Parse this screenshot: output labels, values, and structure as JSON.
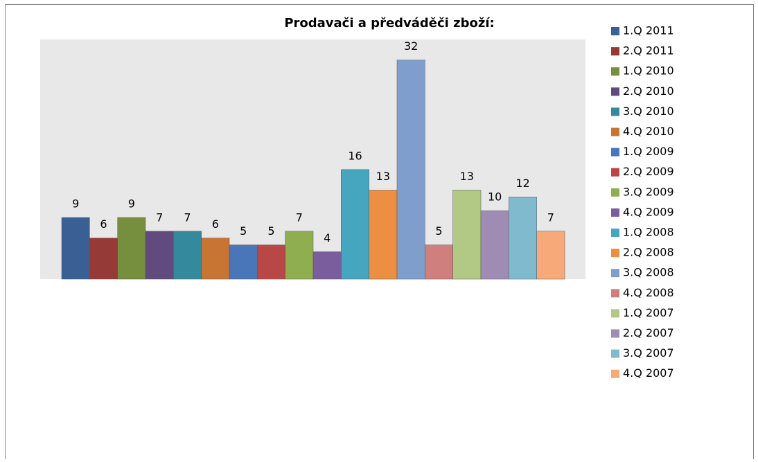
{
  "chart_data": {
    "type": "bar",
    "title": "Prodavači a předváděči zboží:",
    "ylim": [
      0,
      35
    ],
    "series": [
      {
        "name": "1.Q 2011",
        "color": "#3a5f94",
        "values": [
          9
        ]
      },
      {
        "name": "2.Q 2011",
        "color": "#963a38",
        "values": [
          6
        ]
      },
      {
        "name": "1.Q 2010",
        "color": "#768f3e",
        "values": [
          9
        ]
      },
      {
        "name": "2.Q 2010",
        "color": "#614a7e",
        "values": [
          7
        ]
      },
      {
        "name": "3.Q 2010",
        "color": "#35899c",
        "values": [
          7
        ]
      },
      {
        "name": "4.Q 2010",
        "color": "#c87533",
        "values": [
          6
        ]
      },
      {
        "name": "1.Q 2009",
        "color": "#4876b8",
        "values": [
          5
        ]
      },
      {
        "name": "2.Q 2009",
        "color": "#b94745",
        "values": [
          5
        ]
      },
      {
        "name": "3.Q 2009",
        "color": "#8fae50",
        "values": [
          7
        ]
      },
      {
        "name": "4.Q 2009",
        "color": "#7a5d9c",
        "values": [
          4
        ]
      },
      {
        "name": "1.Q 2008",
        "color": "#46a5bf",
        "values": [
          16
        ]
      },
      {
        "name": "2.Q 2008",
        "color": "#ec8f42",
        "values": [
          13
        ]
      },
      {
        "name": "3.Q 2008",
        "color": "#7f9ecb",
        "values": [
          32
        ]
      },
      {
        "name": "4.Q 2008",
        "color": "#cf7f7e",
        "values": [
          5
        ]
      },
      {
        "name": "1.Q 2007",
        "color": "#b1c985",
        "values": [
          13
        ]
      },
      {
        "name": "2.Q 2007",
        "color": "#9e8cb5",
        "values": [
          10
        ]
      },
      {
        "name": "3.Q 2007",
        "color": "#7fbacf",
        "values": [
          12
        ]
      },
      {
        "name": "4.Q 2007",
        "color": "#f7a97a",
        "values": [
          7
        ]
      }
    ]
  }
}
